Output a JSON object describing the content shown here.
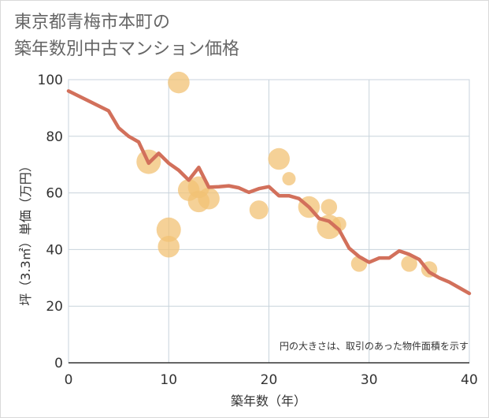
{
  "title_line1": "東京都青梅市本町の",
  "title_line2": "築年数別中古マンション価格",
  "chart_data": {
    "type": "scatter",
    "xlabel": "築年数（年）",
    "ylabel": "坪（3.3㎡）単価（万円）",
    "xlim": [
      0,
      40
    ],
    "ylim": [
      0,
      100
    ],
    "xticks": [
      "0",
      "10",
      "20",
      "30",
      "40"
    ],
    "yticks": [
      "0",
      "20",
      "40",
      "60",
      "80",
      "100"
    ],
    "grid": true,
    "note": "円の大きさは、取引のあった物件面積を示す",
    "colors": {
      "bubble": "#f2c274",
      "line": "#d2705b",
      "grid": "#c8d3dc"
    },
    "bubbles": [
      {
        "x": 8,
        "y": 71,
        "size": 3
      },
      {
        "x": 11,
        "y": 99,
        "size": 2.5
      },
      {
        "x": 10,
        "y": 47,
        "size": 3
      },
      {
        "x": 10,
        "y": 41,
        "size": 2.5
      },
      {
        "x": 12,
        "y": 61,
        "size": 2.5
      },
      {
        "x": 13,
        "y": 62,
        "size": 2.5
      },
      {
        "x": 13,
        "y": 57,
        "size": 2.5
      },
      {
        "x": 14,
        "y": 58,
        "size": 2.5
      },
      {
        "x": 19,
        "y": 54,
        "size": 2
      },
      {
        "x": 21,
        "y": 72,
        "size": 2.5
      },
      {
        "x": 22,
        "y": 65,
        "size": 1
      },
      {
        "x": 24,
        "y": 55,
        "size": 2.5
      },
      {
        "x": 26,
        "y": 55,
        "size": 1.5
      },
      {
        "x": 26,
        "y": 48,
        "size": 3
      },
      {
        "x": 27,
        "y": 49,
        "size": 1.2
      },
      {
        "x": 29,
        "y": 35,
        "size": 1.5
      },
      {
        "x": 34,
        "y": 35,
        "size": 1.5
      },
      {
        "x": 36,
        "y": 33,
        "size": 1.5
      }
    ],
    "trend": {
      "x": [
        0,
        4,
        5,
        6,
        7,
        8,
        9,
        10,
        11,
        12,
        13,
        14,
        15,
        16,
        17,
        18,
        19,
        20,
        21,
        22,
        23,
        24,
        25,
        26,
        27,
        28,
        29,
        30,
        31,
        32,
        33,
        34,
        35,
        36,
        37,
        38,
        39,
        40
      ],
      "y": [
        96,
        89,
        83,
        80,
        78,
        70.5,
        74,
        70.5,
        68,
        64.5,
        69,
        62,
        62.2,
        62.5,
        61.8,
        60.2,
        61.5,
        62.2,
        59,
        59,
        58,
        55,
        51,
        50,
        47,
        40.5,
        37.5,
        35.5,
        37,
        37,
        39.5,
        38.3,
        36.5,
        32,
        30,
        28.5,
        26.5,
        24.5
      ]
    }
  }
}
